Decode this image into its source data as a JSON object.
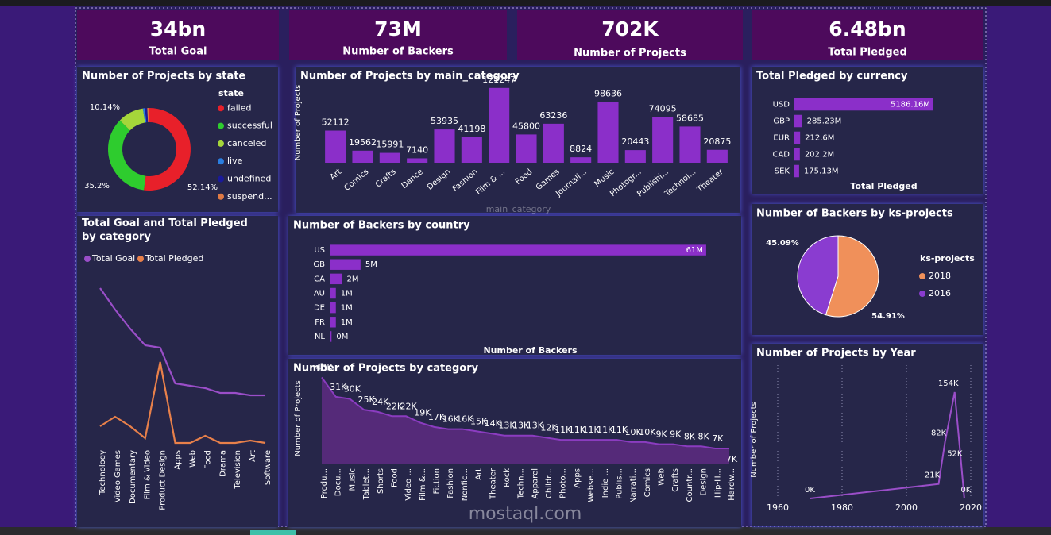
{
  "kpis": [
    {
      "value": "34bn",
      "label": "Total Goal"
    },
    {
      "value": "73M",
      "label": "Number of Backers"
    },
    {
      "value": "702K",
      "label": "Number of Projects"
    },
    {
      "value": "6.48bn",
      "label": "Total Pledged"
    }
  ],
  "watermark": "mostaql.com",
  "chart_data": [
    {
      "type": "donut",
      "title": "Number of Projects by state",
      "legend_title": "state",
      "categories": [
        "failed",
        "successful",
        "canceled",
        "live",
        "undefined",
        "suspend..."
      ],
      "values": [
        52.14,
        35.2,
        10.14,
        0.8,
        0.9,
        0.82
      ],
      "value_labels": [
        "52.14%",
        "35.2%",
        "10.14%",
        null,
        null,
        null
      ],
      "colors": [
        "#e8202a",
        "#2ecc2e",
        "#a5d63a",
        "#2a7ee0",
        "#1a1a9a",
        "#e07a45"
      ]
    },
    {
      "type": "bar",
      "title": "Number of Projects by main_category",
      "y_label": "Number of Projects",
      "x_label": "main_category",
      "categories": [
        "Art",
        "Comics",
        "Crafts",
        "Dance",
        "Design",
        "Fashion",
        "Film & ...",
        "Food",
        "Games",
        "Journali...",
        "Music",
        "Photogr...",
        "Publishi...",
        "Technol...",
        "Theater"
      ],
      "values": [
        52112,
        19562,
        15991,
        7140,
        53935,
        41198,
        121247,
        45800,
        63236,
        8824,
        98636,
        20443,
        74095,
        58685,
        20875
      ],
      "color": "#8b2fc9",
      "ylim": [
        0,
        130000
      ]
    },
    {
      "type": "hbar",
      "title": "Total Pledged by currency",
      "x_label": "Total Pledged",
      "categories": [
        "USD",
        "GBP",
        "EUR",
        "CAD",
        "SEK"
      ],
      "values": [
        5186.16,
        285.23,
        212.6,
        202.2,
        175.13
      ],
      "value_labels": [
        "5186.16M",
        "285.23M",
        "212.6M",
        "202.2M",
        "175.13M"
      ],
      "color": "#8b2fc9",
      "xlim": [
        0,
        6670
      ]
    },
    {
      "type": "hbar",
      "title": "Number of Backers by country",
      "x_label": "Number of Backers",
      "categories": [
        "US",
        "GB",
        "CA",
        "AU",
        "DE",
        "FR",
        "NL"
      ],
      "values": [
        61,
        5,
        2,
        1,
        1,
        1,
        0.3
      ],
      "value_labels": [
        "61M",
        "5M",
        "2M",
        "1M",
        "1M",
        "1M",
        "0M"
      ],
      "color": "#8b2fc9",
      "xlim": [
        0,
        65
      ]
    },
    {
      "type": "line",
      "title": "Total Goal and Total Pledged by category",
      "categories": [
        "Technology",
        "Video Games",
        "Documentary",
        "Film & Video",
        "Product Design",
        "Apps",
        "Web",
        "Food",
        "Drama",
        "Television",
        "Art",
        "Software"
      ],
      "series": [
        {
          "name": "Total Goal",
          "color": "#9a4ec8",
          "values": [
            6.9,
            6.0,
            5.2,
            4.5,
            4.4,
            2.9,
            2.8,
            2.7,
            2.5,
            2.5,
            2.4,
            2.4
          ]
        },
        {
          "name": "Total Pledged",
          "color": "#e8804a",
          "values": [
            1.1,
            1.5,
            1.1,
            0.6,
            3.8,
            0.4,
            0.4,
            0.7,
            0.4,
            0.4,
            0.5,
            0.4
          ]
        }
      ],
      "ylim": [
        0,
        7.5
      ]
    },
    {
      "type": "area",
      "title": "Number of Projects by category",
      "y_label": "Number of Projects",
      "categories": [
        "Produ...",
        "Docu...",
        "Music",
        "Tablet...",
        "Shorts",
        "Food",
        "Video ...",
        "Film &...",
        "Fiction",
        "Fashion",
        "Nonfic...",
        "Art",
        "Theater",
        "Rock",
        "Techn...",
        "Apparel",
        "Childr...",
        "Photo...",
        "Apps",
        "Webse...",
        "Indie ...",
        "Publis...",
        "Narrati...",
        "Comics",
        "Web",
        "Crafts",
        "Countr...",
        "Design",
        "Hip-H...",
        "Hardw..."
      ],
      "values": [
        40000,
        31000,
        30000,
        25000,
        24000,
        22000,
        22000,
        19000,
        17000,
        16000,
        16000,
        15000,
        14000,
        13000,
        13000,
        13000,
        12000,
        11000,
        11000,
        11000,
        11000,
        11000,
        10000,
        10000,
        9000,
        9000,
        8000,
        8000,
        7000,
        7000
      ],
      "value_labels": [
        "40K",
        "31K",
        "30K",
        "25K",
        "24K",
        "22K",
        "22K",
        "19K",
        "17K",
        "16K",
        "16K",
        "15K",
        "14K",
        "13K",
        "13K",
        "13K",
        "12K",
        "11K",
        "11K",
        "11K",
        "11K",
        "11K",
        "10K",
        "10K",
        "9K",
        "9K",
        "8K",
        "8K",
        "7K",
        "7K"
      ],
      "color": "#8b3cc0",
      "ylim": [
        0,
        42000
      ]
    },
    {
      "type": "pie",
      "title": "Number of Backers by ks-projects",
      "legend_title": "ks-projects",
      "categories": [
        "2018",
        "2016"
      ],
      "values": [
        54.91,
        45.09
      ],
      "value_labels": [
        "54.91%",
        "45.09%"
      ],
      "colors": [
        "#f0905a",
        "#8a3cd0"
      ]
    },
    {
      "type": "line",
      "title": "Number of Projects by Year",
      "y_label": "Number of Projects",
      "x": [
        1970,
        2010,
        2012,
        2015,
        2017,
        2018
      ],
      "values": [
        0,
        21000,
        82000,
        154000,
        52000,
        0
      ],
      "value_labels": [
        "0K",
        "21K",
        "82K",
        "154K",
        "52K",
        "0K"
      ],
      "color": "#9a4ec8",
      "xlim": [
        1960,
        2020
      ],
      "xticks": [
        1960,
        1980,
        2000,
        2020
      ],
      "ylim": [
        0,
        170000
      ],
      "grid": true
    }
  ]
}
